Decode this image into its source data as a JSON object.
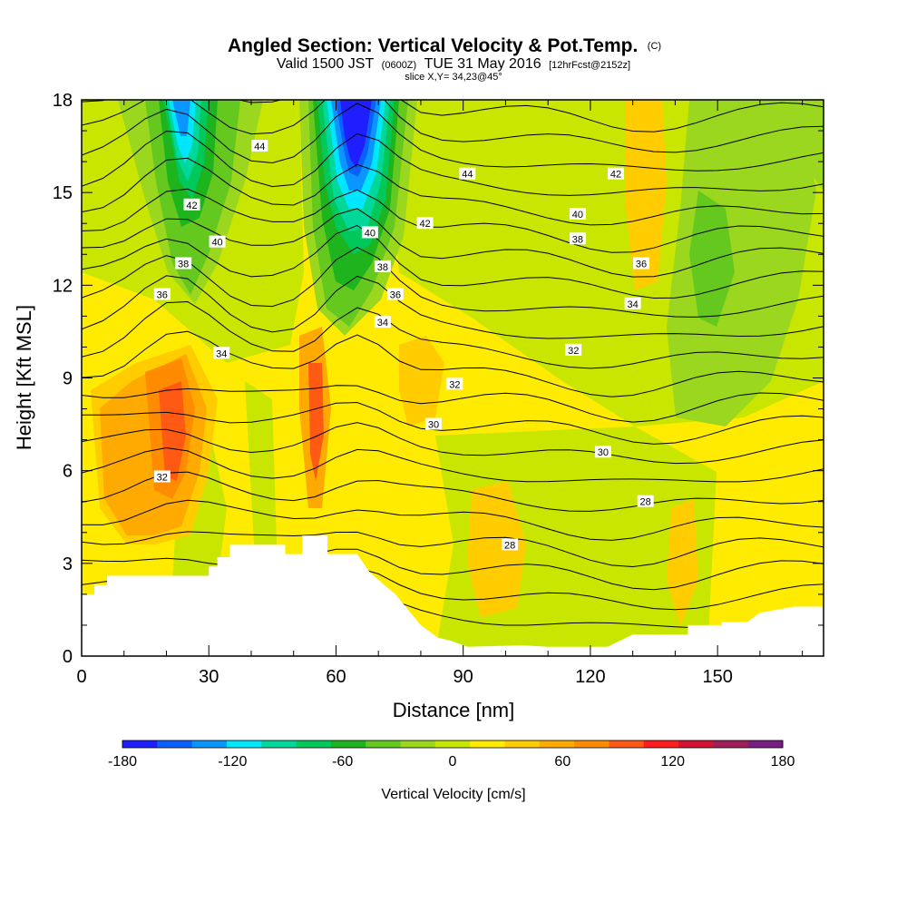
{
  "title": {
    "main": "Angled Section: Vertical Velocity & Pot.Temp.",
    "main_suffix": "(C)",
    "valid_prefix": "Valid 1500 JST",
    "valid_z": "(0600Z)",
    "valid_date": "TUE 31 May 2016",
    "fcst": "[12hrFcst@2152z]",
    "slice": "slice X,Y= 34,23@45°"
  },
  "chart_data": {
    "type": "heatmap",
    "xlabel": "Distance [nm]",
    "ylabel": "Height [Kft MSL]",
    "xlim": [
      0,
      175
    ],
    "ylim": [
      0,
      18
    ],
    "x_ticks": [
      0,
      30,
      60,
      90,
      120,
      150
    ],
    "y_ticks": [
      0,
      3,
      6,
      9,
      12,
      15,
      18
    ],
    "colorbar": {
      "label": "Vertical Velocity [cm/s]",
      "ticks": [
        -180,
        -120,
        -60,
        0,
        60,
        120,
        180
      ],
      "colors": [
        "#1e1eff",
        "#0a5fff",
        "#0a96ff",
        "#00e6ff",
        "#00d79a",
        "#00c85a",
        "#1eb41e",
        "#64c81e",
        "#9bd71e",
        "#c8e600",
        "#ffeb00",
        "#ffcc00",
        "#ffaa00",
        "#ff8c00",
        "#ff5a14",
        "#ff1e1e",
        "#d21432",
        "#a01e5a",
        "#781e82"
      ]
    },
    "contour_labels": [
      {
        "x": 42,
        "y": 16.5,
        "text": "44"
      },
      {
        "x": 91,
        "y": 15.6,
        "text": "44"
      },
      {
        "x": 126,
        "y": 15.6,
        "text": "42"
      },
      {
        "x": 26,
        "y": 14.6,
        "text": "42"
      },
      {
        "x": 81,
        "y": 14.0,
        "text": "42"
      },
      {
        "x": 32,
        "y": 13.4,
        "text": "40"
      },
      {
        "x": 68,
        "y": 13.7,
        "text": "40"
      },
      {
        "x": 117,
        "y": 14.3,
        "text": "40"
      },
      {
        "x": 24,
        "y": 12.7,
        "text": "38"
      },
      {
        "x": 71,
        "y": 12.6,
        "text": "38"
      },
      {
        "x": 117,
        "y": 13.5,
        "text": "38"
      },
      {
        "x": 19,
        "y": 11.7,
        "text": "36"
      },
      {
        "x": 74,
        "y": 11.7,
        "text": "36"
      },
      {
        "x": 132,
        "y": 12.7,
        "text": "36"
      },
      {
        "x": 71,
        "y": 10.8,
        "text": "34"
      },
      {
        "x": 33,
        "y": 9.8,
        "text": "34"
      },
      {
        "x": 130,
        "y": 11.4,
        "text": "34"
      },
      {
        "x": 116,
        "y": 9.9,
        "text": "32"
      },
      {
        "x": 88,
        "y": 8.8,
        "text": "32"
      },
      {
        "x": 19,
        "y": 5.8,
        "text": "32"
      },
      {
        "x": 83,
        "y": 7.5,
        "text": "30"
      },
      {
        "x": 123,
        "y": 6.6,
        "text": "30"
      },
      {
        "x": 133,
        "y": 5.0,
        "text": "28"
      },
      {
        "x": 101,
        "y": 3.6,
        "text": "28"
      }
    ],
    "terrain": [
      [
        0,
        2
      ],
      [
        3,
        2
      ],
      [
        3,
        2.3
      ],
      [
        6,
        2.3
      ],
      [
        6,
        2.6
      ],
      [
        30,
        2.6
      ],
      [
        30,
        2.9
      ],
      [
        32,
        2.9
      ],
      [
        32,
        3.2
      ],
      [
        35,
        3.2
      ],
      [
        35,
        3.6
      ],
      [
        48,
        3.6
      ],
      [
        48,
        3.3
      ],
      [
        52,
        3.3
      ],
      [
        52,
        3.9
      ],
      [
        58,
        3.9
      ],
      [
        58,
        3.3
      ],
      [
        65,
        3.3
      ],
      [
        68,
        2.7
      ],
      [
        74,
        2.0
      ],
      [
        80,
        1.0
      ],
      [
        84,
        0.6
      ],
      [
        87,
        0.5
      ],
      [
        91,
        0.3
      ],
      [
        104,
        0.35
      ],
      [
        110,
        0.3
      ],
      [
        124,
        0.3
      ],
      [
        130,
        0.7
      ],
      [
        137,
        0.7
      ],
      [
        143,
        0.7
      ],
      [
        143,
        1.0
      ],
      [
        151,
        1.0
      ],
      [
        151,
        1.1
      ],
      [
        157,
        1.1
      ],
      [
        160,
        1.4
      ],
      [
        168,
        1.6
      ],
      [
        175,
        1.6
      ],
      [
        175,
        0
      ],
      [
        0,
        0
      ]
    ]
  }
}
